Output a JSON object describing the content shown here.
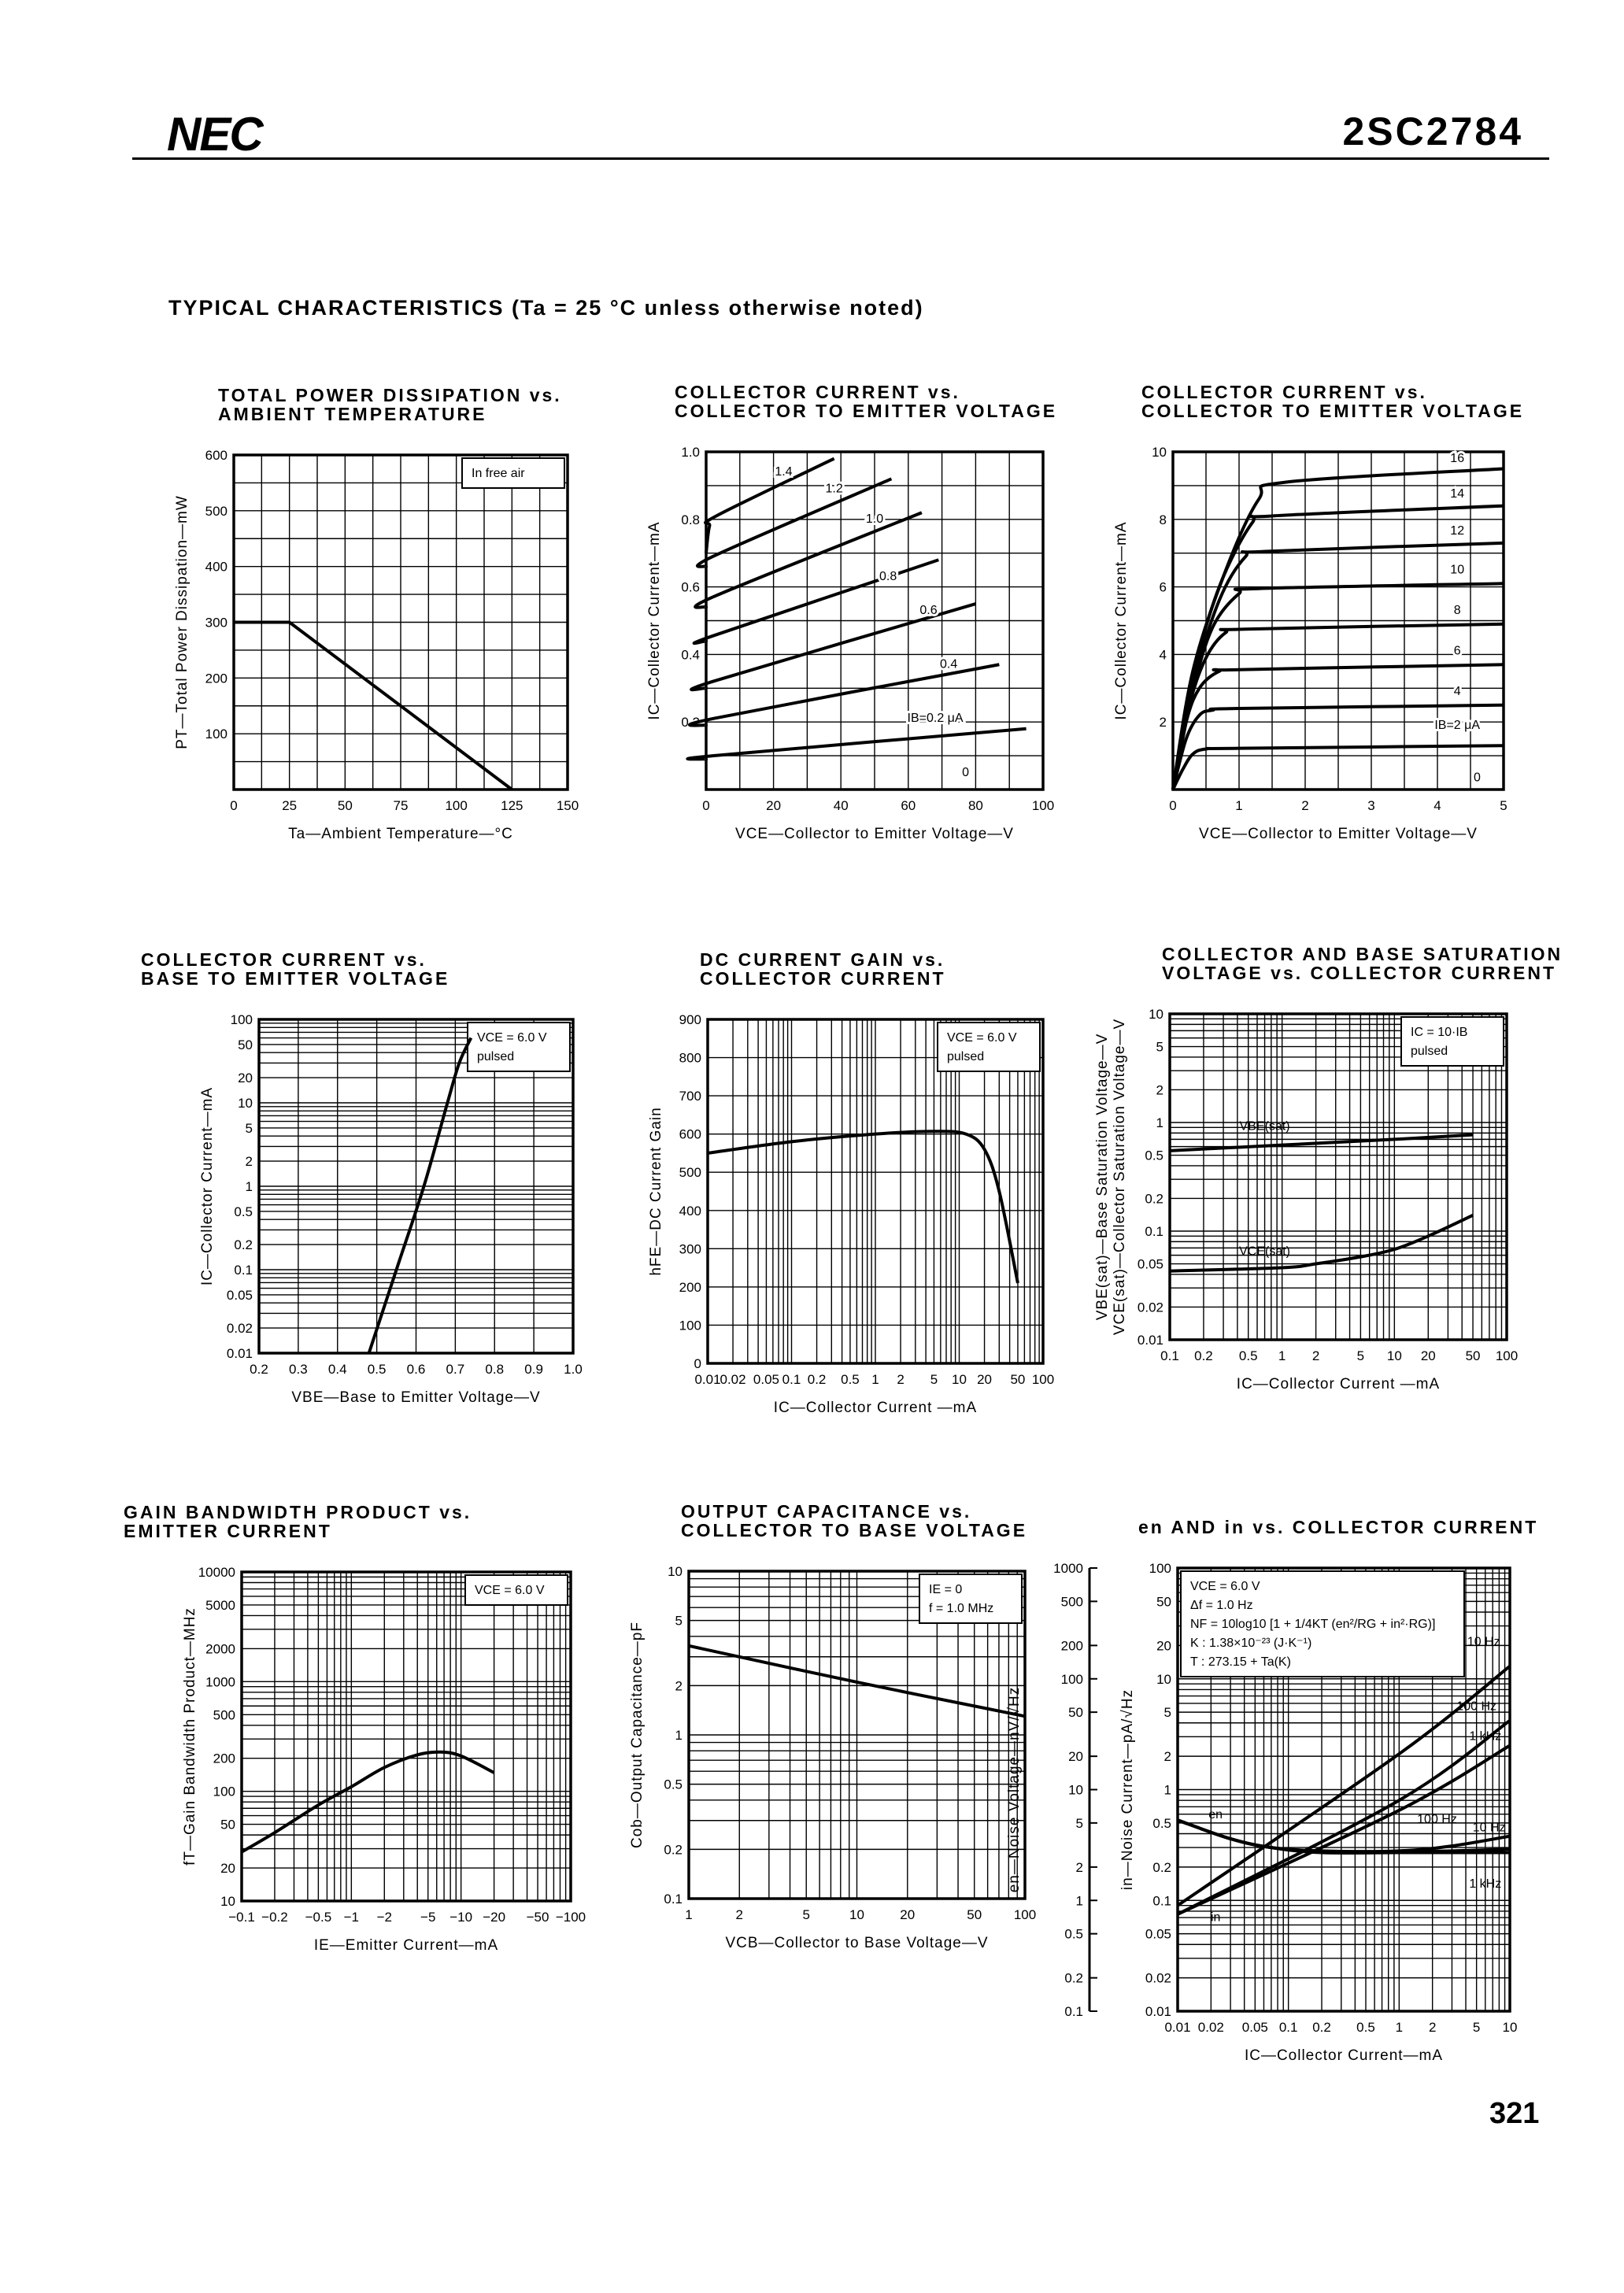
{
  "header": {
    "logo": "NEC",
    "part_number": "2SC2784"
  },
  "section_title": "TYPICAL CHARACTERISTICS (Ta = 25 °C unless otherwise noted)",
  "page_number": "321",
  "chart_data": [
    {
      "type": "line",
      "title": [
        "TOTAL POWER DISSIPATION vs.",
        "AMBIENT TEMPERATURE"
      ],
      "xlabel": "Ta—Ambient Temperature—°C",
      "ylabel": "PT—Total Power Dissipation—mW",
      "xscale": "linear",
      "yscale": "linear",
      "xlim": [
        0,
        150
      ],
      "ylim": [
        0,
        600
      ],
      "xgrid_step": 12.5,
      "ygrid_step": 50,
      "grid": true,
      "xticks": [
        0,
        25,
        50,
        75,
        100,
        125,
        150
      ],
      "yticks": [
        100,
        200,
        300,
        400,
        500,
        600
      ],
      "note": [
        "In free air"
      ],
      "series": [
        {
          "label": "",
          "x": [
            0,
            25,
            125
          ],
          "y": [
            300,
            300,
            0
          ]
        }
      ]
    },
    {
      "type": "line",
      "title": [
        "COLLECTOR CURRENT vs.",
        "COLLECTOR TO EMITTER VOLTAGE"
      ],
      "xlabel": "VCE—Collector to Emitter Voltage—V",
      "ylabel": "IC—Collector Current—mA",
      "xscale": "linear",
      "yscale": "linear",
      "xlim": [
        0,
        100
      ],
      "ylim": [
        0,
        1.0
      ],
      "xgrid_step": 10,
      "ygrid_step": 0.1,
      "grid": true,
      "xticks": [
        0,
        20,
        40,
        60,
        80,
        100
      ],
      "yticks": [
        0.2,
        0.4,
        0.6,
        0.8,
        1.0
      ],
      "yticklabels": [
        "0.2",
        "0.4",
        "0.6",
        "0.8",
        "1.0"
      ],
      "note": [],
      "extra_labels": [
        "0"
      ],
      "series": [
        {
          "label": "IB=0.2 μA",
          "x": [
            0,
            2,
            95
          ],
          "y": [
            0.09,
            0.1,
            0.18
          ]
        },
        {
          "label": "0.4",
          "x": [
            0,
            2,
            87
          ],
          "y": [
            0.19,
            0.21,
            0.37
          ]
        },
        {
          "label": "0.6",
          "x": [
            0,
            2,
            80
          ],
          "y": [
            0.3,
            0.32,
            0.55
          ]
        },
        {
          "label": "0.8",
          "x": [
            0,
            2,
            69
          ],
          "y": [
            0.44,
            0.455,
            0.68
          ]
        },
        {
          "label": "1.0",
          "x": [
            0,
            2,
            64
          ],
          "y": [
            0.54,
            0.57,
            0.82
          ]
        },
        {
          "label": "1.2",
          "x": [
            0,
            2,
            55
          ],
          "y": [
            0.66,
            0.69,
            0.92
          ]
        },
        {
          "label": "1.4",
          "x": [
            0,
            1,
            3,
            38
          ],
          "y": [
            0.7,
            0.78,
            0.81,
            0.98
          ]
        }
      ]
    },
    {
      "type": "line",
      "title": [
        "COLLECTOR CURRENT vs.",
        "COLLECTOR TO EMITTER VOLTAGE"
      ],
      "xlabel": "VCE—Collector to Emitter Voltage—V",
      "ylabel": "IC—Collector Current—mA",
      "xscale": "linear",
      "yscale": "linear",
      "xlim": [
        0,
        5
      ],
      "ylim": [
        0,
        10
      ],
      "xgrid_step": 0.5,
      "ygrid_step": 1,
      "grid": true,
      "xticks": [
        0,
        1,
        2,
        3,
        4,
        5
      ],
      "yticks": [
        2,
        4,
        6,
        8,
        10
      ],
      "note": [],
      "extra_labels": [
        "0"
      ],
      "series": [
        {
          "label": "IB=2 μA",
          "x": [
            0,
            0.15,
            0.3,
            0.5,
            1,
            5
          ],
          "y": [
            0,
            0.6,
            1.05,
            1.2,
            1.22,
            1.3
          ]
        },
        {
          "label": "4",
          "x": [
            0,
            0.2,
            0.4,
            0.6,
            1,
            5
          ],
          "y": [
            0,
            1.5,
            2.2,
            2.35,
            2.4,
            2.5
          ]
        },
        {
          "label": "6",
          "x": [
            0,
            0.2,
            0.4,
            0.7,
            1,
            5
          ],
          "y": [
            0,
            2,
            3,
            3.5,
            3.55,
            3.7
          ]
        },
        {
          "label": "8",
          "x": [
            0,
            0.25,
            0.5,
            0.8,
            1.1,
            5
          ],
          "y": [
            0,
            2.5,
            3.9,
            4.65,
            4.75,
            4.9
          ]
        },
        {
          "label": "10",
          "x": [
            0,
            0.3,
            0.6,
            1,
            1.3,
            5
          ],
          "y": [
            0,
            2.9,
            4.8,
            5.8,
            5.95,
            6.1
          ]
        },
        {
          "label": "12",
          "x": [
            0,
            0.3,
            0.7,
            1.1,
            1.4,
            5
          ],
          "y": [
            0,
            3.1,
            5.6,
            6.9,
            7.05,
            7.3
          ]
        },
        {
          "label": "14",
          "x": [
            0,
            0.3,
            0.7,
            1.2,
            1.5,
            5
          ],
          "y": [
            0,
            3.3,
            6,
            7.9,
            8.1,
            8.4
          ]
        },
        {
          "label": "16",
          "x": [
            0,
            0.3,
            0.8,
            1.3,
            1.7,
            5
          ],
          "y": [
            0,
            3.5,
            6.5,
            8.6,
            9.1,
            9.5
          ]
        }
      ]
    },
    {
      "type": "line",
      "title": [
        "COLLECTOR CURRENT vs.",
        "BASE TO EMITTER VOLTAGE"
      ],
      "xlabel": "VBE—Base to Emitter Voltage—V",
      "ylabel": "IC—Collector Current—mA",
      "xscale": "linear",
      "yscale": "log",
      "xlim": [
        0.2,
        1.0
      ],
      "ylim": [
        0.01,
        100
      ],
      "xgrid_step": 0.1,
      "grid": true,
      "xticks": [
        0.2,
        0.3,
        0.4,
        0.5,
        0.6,
        0.7,
        0.8,
        0.9,
        1.0
      ],
      "xticklabels": [
        "0.2",
        "0.3",
        "0.4",
        "0.5",
        "0.6",
        "0.7",
        "0.8",
        "0.9",
        "1.0"
      ],
      "yticks": [
        0.01,
        0.02,
        0.05,
        0.1,
        0.2,
        0.5,
        1,
        2,
        5,
        10,
        20,
        50,
        100
      ],
      "note": [
        "VCE = 6.0 V",
        "pulsed"
      ],
      "series": [
        {
          "label": "",
          "x": [
            0.48,
            0.55,
            0.62,
            0.68,
            0.71,
            0.74
          ],
          "y": [
            0.01,
            0.1,
            1,
            10,
            30,
            60
          ]
        }
      ]
    },
    {
      "type": "line",
      "title": [
        "DC CURRENT GAIN vs.",
        "COLLECTOR CURRENT"
      ],
      "xlabel": "IC—Collector Current —mA",
      "ylabel": "hFE—DC Current Gain",
      "xscale": "log",
      "yscale": "linear",
      "xlim": [
        0.01,
        100
      ],
      "ylim": [
        0,
        900
      ],
      "ygrid_step": 100,
      "grid": true,
      "xticks": [
        0.01,
        0.02,
        0.05,
        0.1,
        0.2,
        0.5,
        1,
        2,
        5,
        10,
        20,
        50,
        100
      ],
      "yticks": [
        0,
        100,
        200,
        300,
        400,
        500,
        600,
        700,
        800,
        900
      ],
      "note": [
        "VCE = 6.0 V",
        "pulsed"
      ],
      "series": [
        {
          "label": "",
          "x": [
            0.01,
            0.1,
            1,
            5,
            12,
            20,
            30,
            50
          ],
          "y": [
            550,
            580,
            600,
            607,
            600,
            560,
            450,
            210
          ]
        }
      ]
    },
    {
      "type": "line",
      "title": [
        "COLLECTOR AND BASE SATURATION",
        "VOLTAGE vs. COLLECTOR CURRENT"
      ],
      "xlabel": "IC—Collector Current —mA",
      "ylabel": "VBE(sat)—Base Saturation Voltage—V",
      "ylabel2": "VCE(sat)—Collector Saturation Voltage—V",
      "xscale": "log",
      "yscale": "log",
      "xlim": [
        0.1,
        100
      ],
      "ylim": [
        0.01,
        10
      ],
      "grid": true,
      "xticks": [
        0.1,
        0.2,
        0.5,
        1,
        2,
        5,
        10,
        20,
        50,
        100
      ],
      "yticks": [
        0.01,
        0.02,
        0.05,
        0.1,
        0.2,
        0.5,
        1,
        2,
        5,
        10
      ],
      "note": [
        "IC = 10·IB",
        "pulsed"
      ],
      "series": [
        {
          "label": "VBE(sat)",
          "x": [
            0.1,
            1,
            10,
            50
          ],
          "y": [
            0.55,
            0.62,
            0.7,
            0.77
          ]
        },
        {
          "label": "VCE(sat)",
          "x": [
            0.1,
            1,
            2,
            5,
            10,
            20,
            50
          ],
          "y": [
            0.043,
            0.046,
            0.05,
            0.058,
            0.068,
            0.09,
            0.14
          ]
        }
      ]
    },
    {
      "type": "line",
      "title": [
        "GAIN BANDWIDTH PRODUCT vs.",
        "EMITTER CURRENT"
      ],
      "xlabel": "IE—Emitter Current—mA",
      "ylabel": "fT—Gain Bandwidth Product—MHz",
      "xscale": "log",
      "yscale": "log",
      "xlim": [
        0.1,
        100
      ],
      "ylim": [
        10,
        10000
      ],
      "grid": true,
      "xticks": [
        0.1,
        0.2,
        0.5,
        1,
        2,
        5,
        10,
        20,
        50,
        100
      ],
      "xticklabels": [
        "−0.1",
        "−0.2",
        "−0.5",
        "−1",
        "−2",
        "−5",
        "−10",
        "−20",
        "−50",
        "−100"
      ],
      "yticks": [
        10,
        20,
        50,
        100,
        200,
        500,
        1000,
        2000,
        5000,
        10000
      ],
      "note": [
        "VCE = 6.0 V"
      ],
      "series": [
        {
          "label": "",
          "x": [
            0.1,
            0.2,
            0.5,
            1,
            2,
            4,
            6.5,
            10,
            20
          ],
          "y": [
            28,
            42,
            75,
            110,
            165,
            215,
            228,
            210,
            148
          ]
        }
      ]
    },
    {
      "type": "line",
      "title": [
        "OUTPUT CAPACITANCE vs.",
        "COLLECTOR TO BASE VOLTAGE"
      ],
      "xlabel": "VCB—Collector to Base Voltage—V",
      "ylabel": "Cob—Output Capacitance—pF",
      "xscale": "log",
      "yscale": "log",
      "xlim": [
        1,
        100
      ],
      "ylim": [
        0.1,
        10
      ],
      "grid": true,
      "xticks": [
        1,
        2,
        5,
        10,
        20,
        50,
        100
      ],
      "yticks": [
        0.1,
        0.2,
        0.5,
        1,
        2,
        5,
        10
      ],
      "note": [
        "IE = 0",
        "f = 1.0 MHz"
      ],
      "series": [
        {
          "label": "",
          "x": [
            1,
            10,
            100
          ],
          "y": [
            3.5,
            2.1,
            1.3
          ]
        }
      ]
    },
    {
      "type": "line",
      "title": [
        "en AND in vs. COLLECTOR CURRENT"
      ],
      "xlabel": "IC—Collector Current—mA",
      "ylabel": "in—Noise Current—pA/√Hz",
      "ylabel2": "en—Noise Voltage—nV/√Hz",
      "xscale": "log",
      "yscale": "log",
      "xlim": [
        0.01,
        10
      ],
      "ylim": [
        0.01,
        100
      ],
      "y2lim": [
        0.1,
        1000
      ],
      "grid": true,
      "xticks": [
        0.01,
        0.02,
        0.05,
        0.1,
        0.2,
        0.5,
        1,
        2,
        5,
        10
      ],
      "yticks": [
        0.01,
        0.02,
        0.05,
        0.1,
        0.2,
        0.5,
        1,
        2,
        5,
        10,
        20,
        50,
        100
      ],
      "y2ticks": [
        0.1,
        0.2,
        0.5,
        1,
        2,
        5,
        10,
        20,
        50,
        100,
        200,
        500,
        1000
      ],
      "note": [
        "VCE = 6.0 V",
        "Δf = 1.0 Hz",
        "NF = 10log10 [1 + 1/4KT (en²/RG + in²·RG)]",
        "K : 1.38×10⁻²³ (J·K⁻¹)",
        "T : 273.15 + Ta(K)"
      ],
      "extra_labels": [
        "en",
        "in"
      ],
      "series": [
        {
          "label": "10 Hz",
          "quantity": "in",
          "x": [
            0.01,
            1,
            10
          ],
          "y": [
            0.09,
            2.1,
            13
          ]
        },
        {
          "label": "100 Hz",
          "quantity": "in",
          "x": [
            0.01,
            1,
            10
          ],
          "y": [
            0.075,
            0.8,
            4.2
          ]
        },
        {
          "label": "1 kHz",
          "quantity": "in",
          "x": [
            0.01,
            1,
            10
          ],
          "y": [
            0.075,
            0.65,
            2.5
          ]
        },
        {
          "label": "10 Hz",
          "quantity": "en",
          "x": [
            0.01,
            0.03,
            0.07,
            0.2,
            1,
            3,
            10
          ],
          "y": [
            5.3,
            3.6,
            3.0,
            2.8,
            2.8,
            3.1,
            3.8
          ]
        },
        {
          "label": "100 Hz",
          "quantity": "en",
          "x": [
            0.01,
            0.03,
            0.07,
            0.2,
            1,
            3,
            10
          ],
          "y": [
            5.3,
            3.6,
            3.0,
            2.75,
            2.75,
            2.8,
            2.9
          ]
        },
        {
          "label": "1 kHz",
          "quantity": "en",
          "x": [
            0.01,
            0.03,
            0.07,
            0.2,
            1,
            3,
            10
          ],
          "y": [
            5.3,
            3.6,
            3.0,
            2.7,
            2.7,
            2.7,
            2.7
          ]
        }
      ]
    }
  ]
}
